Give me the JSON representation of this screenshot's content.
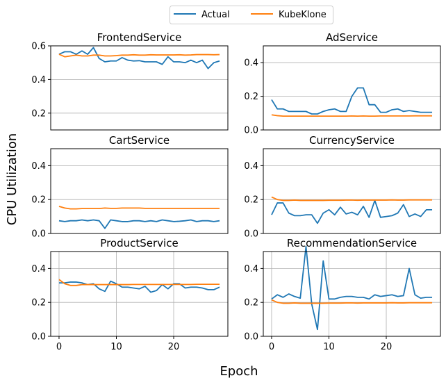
{
  "figure": {
    "ylabel": "CPU Utilization",
    "xlabel": "Epoch",
    "legend": {
      "placement": "top-center",
      "entries": [
        {
          "name": "Actual",
          "color": "#1f77b4"
        },
        {
          "name": "KubeKlone",
          "color": "#ff7f0e"
        }
      ]
    }
  },
  "chart_data": [
    {
      "type": "line",
      "title": "FrontendService",
      "xlim": [
        -1.45,
        29.45
      ],
      "ylim": [
        0.1,
        0.6
      ],
      "yticks": [
        0.2,
        0.4,
        0.6
      ],
      "ytick_labels": [
        "0.2",
        "0.4",
        "0.6"
      ],
      "xticks": [],
      "xtick_labels": [],
      "grid": "y",
      "x": [
        0,
        1,
        2,
        3,
        4,
        5,
        6,
        7,
        8,
        9,
        10,
        11,
        12,
        13,
        14,
        15,
        16,
        17,
        18,
        19,
        20,
        21,
        22,
        23,
        24,
        25,
        26,
        27,
        28
      ],
      "series": [
        {
          "name": "Actual",
          "color": "#1f77b4",
          "values": [
            0.55,
            0.565,
            0.565,
            0.55,
            0.57,
            0.55,
            0.59,
            0.525,
            0.505,
            0.51,
            0.51,
            0.53,
            0.515,
            0.51,
            0.512,
            0.505,
            0.505,
            0.505,
            0.49,
            0.535,
            0.505,
            0.505,
            0.5,
            0.515,
            0.5,
            0.515,
            0.465,
            0.5,
            0.51
          ]
        },
        {
          "name": "KubeKlone",
          "color": "#ff7f0e",
          "values": [
            0.55,
            0.535,
            0.54,
            0.545,
            0.54,
            0.54,
            0.545,
            0.545,
            0.54,
            0.54,
            0.542,
            0.545,
            0.545,
            0.547,
            0.545,
            0.545,
            0.547,
            0.546,
            0.546,
            0.546,
            0.546,
            0.547,
            0.545,
            0.546,
            0.548,
            0.548,
            0.548,
            0.547,
            0.548
          ]
        }
      ]
    },
    {
      "type": "line",
      "title": "AdService",
      "xlim": [
        -1.45,
        29.45
      ],
      "ylim": [
        0.0,
        0.5
      ],
      "yticks": [
        0.0,
        0.2,
        0.4
      ],
      "ytick_labels": [
        "0.0",
        "0.2",
        "0.4"
      ],
      "xticks": [],
      "xtick_labels": [],
      "grid": "y",
      "x": [
        0,
        1,
        2,
        3,
        4,
        5,
        6,
        7,
        8,
        9,
        10,
        11,
        12,
        13,
        14,
        15,
        16,
        17,
        18,
        19,
        20,
        21,
        22,
        23,
        24,
        25,
        26,
        27,
        28
      ],
      "series": [
        {
          "name": "Actual",
          "color": "#1f77b4",
          "values": [
            0.18,
            0.125,
            0.125,
            0.11,
            0.11,
            0.11,
            0.11,
            0.095,
            0.095,
            0.11,
            0.12,
            0.125,
            0.11,
            0.11,
            0.2,
            0.25,
            0.25,
            0.15,
            0.15,
            0.105,
            0.105,
            0.12,
            0.125,
            0.11,
            0.115,
            0.11,
            0.105,
            0.105,
            0.105
          ]
        },
        {
          "name": "KubeKlone",
          "color": "#ff7f0e",
          "values": [
            0.09,
            0.085,
            0.082,
            0.082,
            0.082,
            0.082,
            0.082,
            0.082,
            0.082,
            0.082,
            0.082,
            0.082,
            0.082,
            0.082,
            0.083,
            0.082,
            0.083,
            0.082,
            0.082,
            0.083,
            0.083,
            0.083,
            0.083,
            0.083,
            0.083,
            0.084,
            0.084,
            0.084,
            0.084
          ]
        }
      ]
    },
    {
      "type": "line",
      "title": "CartService",
      "xlim": [
        -1.45,
        29.45
      ],
      "ylim": [
        0.0,
        0.5
      ],
      "yticks": [
        0.0,
        0.2,
        0.4
      ],
      "ytick_labels": [
        "0.0",
        "0.2",
        "0.4"
      ],
      "xticks": [],
      "xtick_labels": [],
      "grid": "y",
      "x": [
        0,
        1,
        2,
        3,
        4,
        5,
        6,
        7,
        8,
        9,
        10,
        11,
        12,
        13,
        14,
        15,
        16,
        17,
        18,
        19,
        20,
        21,
        22,
        23,
        24,
        25,
        26,
        27,
        28
      ],
      "series": [
        {
          "name": "Actual",
          "color": "#1f77b4",
          "values": [
            0.075,
            0.07,
            0.075,
            0.075,
            0.08,
            0.075,
            0.08,
            0.075,
            0.03,
            0.08,
            0.075,
            0.07,
            0.07,
            0.075,
            0.075,
            0.07,
            0.075,
            0.07,
            0.08,
            0.075,
            0.07,
            0.072,
            0.075,
            0.08,
            0.07,
            0.075,
            0.075,
            0.07,
            0.075
          ]
        },
        {
          "name": "KubeKlone",
          "color": "#ff7f0e",
          "values": [
            0.16,
            0.15,
            0.145,
            0.145,
            0.147,
            0.147,
            0.147,
            0.147,
            0.15,
            0.148,
            0.148,
            0.15,
            0.15,
            0.15,
            0.15,
            0.148,
            0.148,
            0.148,
            0.148,
            0.148,
            0.148,
            0.148,
            0.148,
            0.148,
            0.148,
            0.148,
            0.148,
            0.148,
            0.148
          ]
        }
      ]
    },
    {
      "type": "line",
      "title": "CurrencyService",
      "xlim": [
        -1.45,
        29.45
      ],
      "ylim": [
        0.0,
        0.5
      ],
      "yticks": [
        0.0,
        0.2,
        0.4
      ],
      "ytick_labels": [
        "0.0",
        "0.2",
        "0.4"
      ],
      "xticks": [],
      "xtick_labels": [],
      "grid": "y",
      "x": [
        0,
        1,
        2,
        3,
        4,
        5,
        6,
        7,
        8,
        9,
        10,
        11,
        12,
        13,
        14,
        15,
        16,
        17,
        18,
        19,
        20,
        21,
        22,
        23,
        24,
        25,
        26,
        27,
        28
      ],
      "series": [
        {
          "name": "Actual",
          "color": "#1f77b4",
          "values": [
            0.11,
            0.18,
            0.18,
            0.12,
            0.105,
            0.105,
            0.11,
            0.11,
            0.06,
            0.12,
            0.14,
            0.11,
            0.155,
            0.115,
            0.125,
            0.11,
            0.16,
            0.095,
            0.195,
            0.095,
            0.1,
            0.105,
            0.12,
            0.17,
            0.1,
            0.115,
            0.1,
            0.14,
            0.14
          ]
        },
        {
          "name": "KubeKlone",
          "color": "#ff7f0e",
          "values": [
            0.215,
            0.2,
            0.195,
            0.195,
            0.197,
            0.195,
            0.195,
            0.195,
            0.195,
            0.195,
            0.196,
            0.196,
            0.196,
            0.197,
            0.197,
            0.196,
            0.197,
            0.197,
            0.197,
            0.197,
            0.197,
            0.198,
            0.197,
            0.197,
            0.198,
            0.198,
            0.198,
            0.198,
            0.198
          ]
        }
      ]
    },
    {
      "type": "line",
      "title": "ProductService",
      "xlim": [
        -1.45,
        29.45
      ],
      "ylim": [
        0.0,
        0.5
      ],
      "yticks": [
        0.0,
        0.2,
        0.4
      ],
      "ytick_labels": [
        "0.0",
        "0.2",
        "0.4"
      ],
      "xticks": [
        0,
        10,
        20
      ],
      "xtick_labels": [
        "0",
        "10",
        "20"
      ],
      "grid": "both",
      "x": [
        0,
        1,
        2,
        3,
        4,
        5,
        6,
        7,
        8,
        9,
        10,
        11,
        12,
        13,
        14,
        15,
        16,
        17,
        18,
        19,
        20,
        21,
        22,
        23,
        24,
        25,
        26,
        27,
        28
      ],
      "series": [
        {
          "name": "Actual",
          "color": "#1f77b4",
          "values": [
            0.315,
            0.315,
            0.32,
            0.32,
            0.315,
            0.305,
            0.31,
            0.28,
            0.265,
            0.325,
            0.31,
            0.29,
            0.29,
            0.285,
            0.28,
            0.295,
            0.26,
            0.27,
            0.305,
            0.28,
            0.31,
            0.31,
            0.285,
            0.29,
            0.29,
            0.285,
            0.275,
            0.275,
            0.29
          ]
        },
        {
          "name": "KubeKlone",
          "color": "#ff7f0e",
          "values": [
            0.335,
            0.31,
            0.3,
            0.3,
            0.305,
            0.305,
            0.305,
            0.305,
            0.305,
            0.305,
            0.305,
            0.305,
            0.305,
            0.306,
            0.306,
            0.306,
            0.306,
            0.306,
            0.306,
            0.306,
            0.306,
            0.306,
            0.306,
            0.306,
            0.307,
            0.307,
            0.307,
            0.307,
            0.307
          ]
        }
      ]
    },
    {
      "type": "line",
      "title": "RecommendationService",
      "xlim": [
        -1.45,
        29.45
      ],
      "ylim": [
        0.0,
        0.5
      ],
      "yticks": [
        0.0,
        0.2,
        0.4
      ],
      "ytick_labels": [
        "0.0",
        "0.2",
        "0.4"
      ],
      "xticks": [
        0,
        10,
        20
      ],
      "xtick_labels": [
        "0",
        "10",
        "20"
      ],
      "grid": "both",
      "x": [
        0,
        1,
        2,
        3,
        4,
        5,
        6,
        7,
        8,
        9,
        10,
        11,
        12,
        13,
        14,
        15,
        16,
        17,
        18,
        19,
        20,
        21,
        22,
        23,
        24,
        25,
        26,
        27,
        28
      ],
      "series": [
        {
          "name": "Actual",
          "color": "#1f77b4",
          "values": [
            0.22,
            0.245,
            0.23,
            0.25,
            0.235,
            0.225,
            0.53,
            0.19,
            0.04,
            0.445,
            0.22,
            0.22,
            0.23,
            0.235,
            0.235,
            0.23,
            0.23,
            0.22,
            0.245,
            0.235,
            0.24,
            0.245,
            0.235,
            0.24,
            0.4,
            0.245,
            0.225,
            0.23,
            0.23
          ]
        },
        {
          "name": "KubeKlone",
          "color": "#ff7f0e",
          "values": [
            0.215,
            0.2,
            0.195,
            0.195,
            0.197,
            0.195,
            0.195,
            0.195,
            0.195,
            0.195,
            0.196,
            0.196,
            0.196,
            0.197,
            0.197,
            0.196,
            0.197,
            0.197,
            0.197,
            0.197,
            0.197,
            0.198,
            0.197,
            0.197,
            0.198,
            0.198,
            0.198,
            0.198,
            0.198
          ]
        }
      ]
    }
  ]
}
